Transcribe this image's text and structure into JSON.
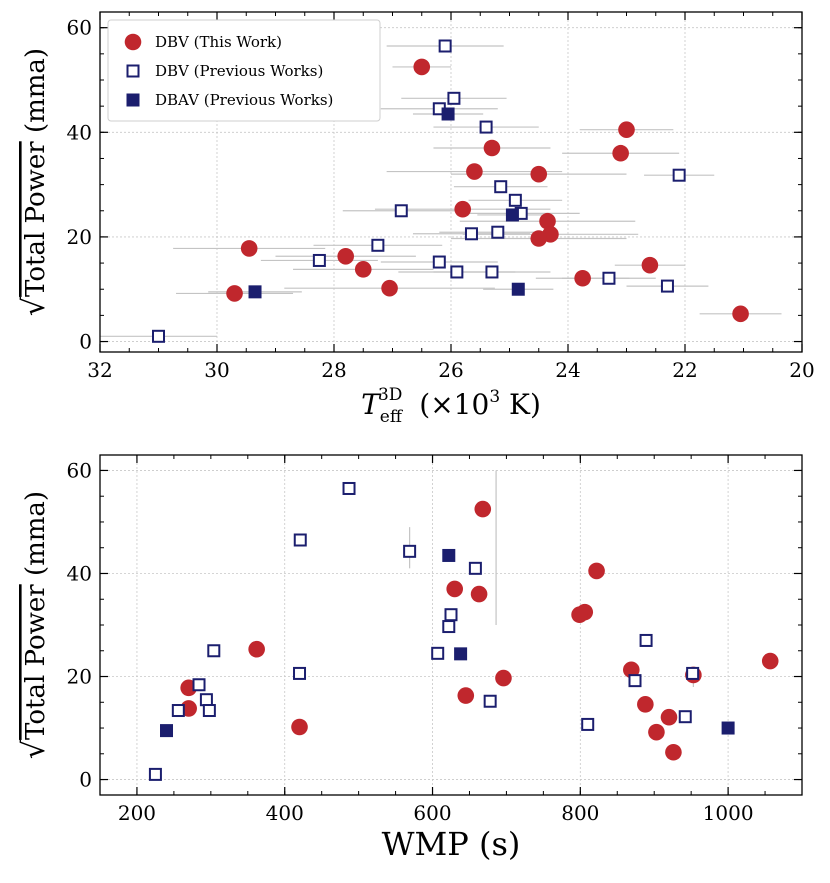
{
  "chart_data": [
    {
      "type": "scatter",
      "xlabel": "T_eff^3D (×10^3 K)",
      "ylabel": "√Total Power (mma)",
      "xlim": [
        32,
        20
      ],
      "ylim": [
        -2,
        63
      ],
      "xticks": [
        32,
        30,
        28,
        26,
        24,
        22,
        20
      ],
      "yticks": [
        0,
        20,
        40,
        60
      ],
      "grid": true,
      "legend_position": "top-left",
      "series": [
        {
          "name": "DBV (This Work)",
          "marker": "circle",
          "color": "#c0272d",
          "points": [
            {
              "x": 26.5,
              "y": 52.5,
              "xerr": 0.5
            },
            {
              "x": 23.0,
              "y": 40.5,
              "xerr": 0.8
            },
            {
              "x": 23.1,
              "y": 36.0,
              "xerr": 1.0
            },
            {
              "x": 25.3,
              "y": 37.0,
              "xerr": 1.0
            },
            {
              "x": 25.6,
              "y": 32.5,
              "xerr": 1.5
            },
            {
              "x": 24.5,
              "y": 32.0,
              "xerr": 1.5
            },
            {
              "x": 25.8,
              "y": 25.3,
              "xerr": 1.5
            },
            {
              "x": 24.35,
              "y": 23.0,
              "xerr": 1.5
            },
            {
              "x": 24.3,
              "y": 20.5,
              "xerr": 1.5
            },
            {
              "x": 24.5,
              "y": 19.7,
              "xerr": 1.5
            },
            {
              "x": 29.45,
              "y": 17.8,
              "xerr": 1.3
            },
            {
              "x": 27.8,
              "y": 16.3,
              "xerr": 1.2
            },
            {
              "x": 27.5,
              "y": 13.8,
              "xerr": 1.2
            },
            {
              "x": 22.6,
              "y": 14.6,
              "xerr": 0.6
            },
            {
              "x": 23.75,
              "y": 12.1,
              "xerr": 0.8
            },
            {
              "x": 29.7,
              "y": 9.2,
              "xerr": 1.0
            },
            {
              "x": 27.05,
              "y": 10.2,
              "xerr": 1.8
            },
            {
              "x": 21.05,
              "y": 5.3,
              "xerr": 0.7
            }
          ]
        },
        {
          "name": "DBV (Previous Works)",
          "marker": "open-square",
          "color": "#1b1e6e",
          "points": [
            {
              "x": 26.1,
              "y": 56.5,
              "xerr": 1.0
            },
            {
              "x": 25.95,
              "y": 46.5,
              "xerr": 0.9
            },
            {
              "x": 26.2,
              "y": 44.5,
              "xerr": 1.0
            },
            {
              "x": 25.4,
              "y": 41.0,
              "xerr": 0.9
            },
            {
              "x": 22.1,
              "y": 31.8,
              "xerr": 0.6
            },
            {
              "x": 25.15,
              "y": 29.6,
              "xerr": 0.8
            },
            {
              "x": 24.9,
              "y": 27.0,
              "xerr": 0.8
            },
            {
              "x": 26.85,
              "y": 25.0,
              "xerr": 1.0
            },
            {
              "x": 24.8,
              "y": 24.5,
              "xerr": 1.0
            },
            {
              "x": 25.65,
              "y": 20.6,
              "xerr": 1.0
            },
            {
              "x": 25.2,
              "y": 20.9,
              "xerr": 1.0
            },
            {
              "x": 27.25,
              "y": 18.4,
              "xerr": 1.1
            },
            {
              "x": 28.25,
              "y": 15.5,
              "xerr": 1.0
            },
            {
              "x": 26.2,
              "y": 15.2,
              "xerr": 1.0
            },
            {
              "x": 25.9,
              "y": 13.3,
              "xerr": 1.0
            },
            {
              "x": 25.3,
              "y": 13.3,
              "xerr": 1.0
            },
            {
              "x": 23.3,
              "y": 12.1,
              "xerr": 0.8
            },
            {
              "x": 22.3,
              "y": 10.6,
              "xerr": 0.7
            },
            {
              "x": 31.0,
              "y": 1.0,
              "xerr": 1.0
            }
          ]
        },
        {
          "name": "DBAV (Previous Works)",
          "marker": "filled-square",
          "color": "#1b1e6e",
          "points": [
            {
              "x": 26.05,
              "y": 43.5,
              "xerr": 0.6
            },
            {
              "x": 24.95,
              "y": 24.2,
              "xerr": 0.6
            },
            {
              "x": 29.35,
              "y": 9.5,
              "xerr": 0.8
            },
            {
              "x": 24.85,
              "y": 10.0,
              "xerr": 0.6
            }
          ]
        }
      ]
    },
    {
      "type": "scatter",
      "xlabel": "WMP (s)",
      "ylabel": "√Total Power (mma)",
      "xlim": [
        150,
        1100
      ],
      "ylim": [
        -3,
        63
      ],
      "xticks": [
        200,
        400,
        600,
        800,
        1000
      ],
      "yticks": [
        0,
        20,
        40,
        60
      ],
      "grid": true,
      "series": [
        {
          "name": "DBV (This Work)",
          "marker": "circle",
          "color": "#c0272d",
          "points": [
            {
              "x": 668,
              "y": 52.5
            },
            {
              "x": 822,
              "y": 40.5
            },
            {
              "x": 663,
              "y": 36.0
            },
            {
              "x": 630,
              "y": 37.0
            },
            {
              "x": 806,
              "y": 32.5
            },
            {
              "x": 799,
              "y": 32.0
            },
            {
              "x": 362,
              "y": 25.3
            },
            {
              "x": 1057,
              "y": 23.0
            },
            {
              "x": 869,
              "y": 21.3
            },
            {
              "x": 953,
              "y": 20.3
            },
            {
              "x": 696,
              "y": 19.7
            },
            {
              "x": 270,
              "y": 17.8
            },
            {
              "x": 645,
              "y": 16.3
            },
            {
              "x": 270,
              "y": 13.8
            },
            {
              "x": 888,
              "y": 14.6
            },
            {
              "x": 920,
              "y": 12.1
            },
            {
              "x": 420,
              "y": 10.2
            },
            {
              "x": 903,
              "y": 9.2
            },
            {
              "x": 926,
              "y": 5.3
            }
          ]
        },
        {
          "name": "DBV (Previous Works)",
          "marker": "open-square",
          "color": "#1b1e6e",
          "points": [
            {
              "x": 487,
              "y": 56.5
            },
            {
              "x": 421,
              "y": 46.5
            },
            {
              "x": 569,
              "y": 44.3
            },
            {
              "x": 658,
              "y": 41.0
            },
            {
              "x": 625,
              "y": 32.0
            },
            {
              "x": 622,
              "y": 29.7
            },
            {
              "x": 889,
              "y": 27.0
            },
            {
              "x": 304,
              "y": 25.0
            },
            {
              "x": 607,
              "y": 24.5
            },
            {
              "x": 952,
              "y": 20.6
            },
            {
              "x": 420,
              "y": 20.6
            },
            {
              "x": 874,
              "y": 19.2
            },
            {
              "x": 284,
              "y": 18.4
            },
            {
              "x": 294,
              "y": 15.5
            },
            {
              "x": 678,
              "y": 15.2
            },
            {
              "x": 256,
              "y": 13.4
            },
            {
              "x": 298,
              "y": 13.4
            },
            {
              "x": 942,
              "y": 12.2
            },
            {
              "x": 810,
              "y": 10.7
            },
            {
              "x": 225,
              "y": 1.0
            }
          ]
        },
        {
          "name": "DBAV (Previous Works)",
          "marker": "filled-square",
          "color": "#1b1e6e",
          "points": [
            {
              "x": 622,
              "y": 43.5
            },
            {
              "x": 638,
              "y": 24.4
            },
            {
              "x": 240,
              "y": 9.5
            },
            {
              "x": 1000,
              "y": 10.0
            }
          ]
        }
      ]
    }
  ]
}
